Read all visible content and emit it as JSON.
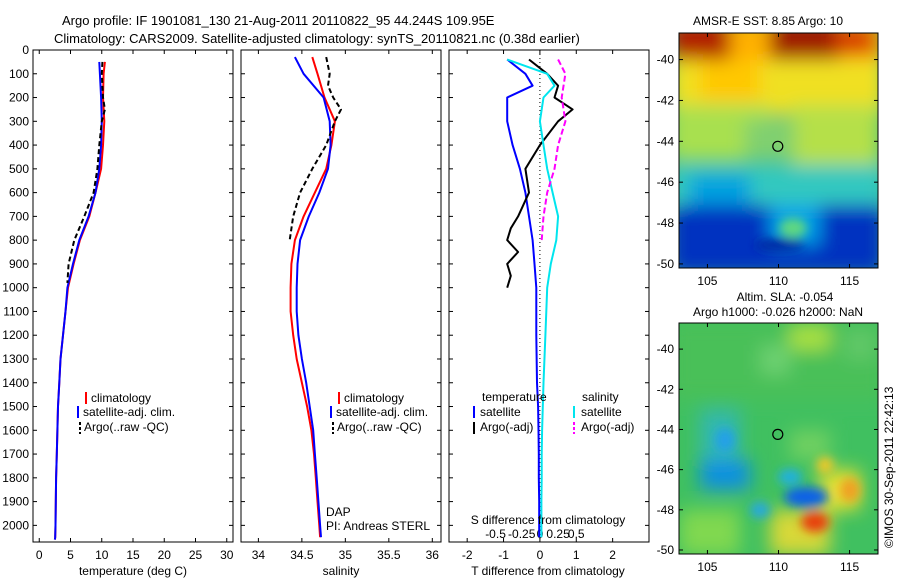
{
  "figure": {
    "title_line1": "Argo profile: IF 1901081_130 21-Aug-2011 20110822_95 44.244S 109.95E",
    "title_line2": "Climatology: CARS2009. Satellite-adjusted climatology: synTS_20110821.nc (0.38d earlier)",
    "credit": "©IMOS 30-Sep-2011 22:42:13",
    "dap_label": "DAP",
    "pi_label": "PI: Andreas STERL"
  },
  "colors": {
    "climatology": "#ff0000",
    "satellite": "#0000ff",
    "argo": "#000000",
    "satellite_salinity": "#00e5ee",
    "argo_salinity": "#ff00ff"
  },
  "chart_data": [
    {
      "type": "line",
      "id": "temperature",
      "xlabel": "temperature (deg C)",
      "ylabel": "",
      "xlim": [
        -1,
        31
      ],
      "ylim": [
        2070,
        0
      ],
      "xticks": [
        0,
        5,
        10,
        15,
        20,
        25,
        30
      ],
      "yticks": [
        0,
        100,
        200,
        300,
        400,
        500,
        600,
        700,
        800,
        900,
        1000,
        1100,
        1200,
        1300,
        1400,
        1500,
        1600,
        1700,
        1800,
        1900,
        2000
      ],
      "legend": [
        "climatology",
        "satellite-adj. clim.",
        "Argo(..raw -QC)"
      ],
      "series": [
        {
          "name": "climatology",
          "color": "#ff0000",
          "dash": "",
          "x": [
            10.5,
            10.3,
            10.2,
            10.4,
            10.2,
            9.9,
            9.0,
            8.0,
            6.5,
            5.5,
            4.6,
            4.2,
            3.8,
            3.4,
            3.2,
            3.0,
            2.9,
            2.8,
            2.7,
            2.65,
            2.6,
            2.55,
            2.5
          ],
          "y": [
            50,
            100,
            200,
            300,
            400,
            500,
            600,
            700,
            800,
            900,
            1000,
            1100,
            1200,
            1300,
            1400,
            1500,
            1600,
            1700,
            1800,
            1900,
            2000,
            2050,
            2060
          ]
        },
        {
          "name": "satellite-adj. clim.",
          "color": "#0000ff",
          "dash": "",
          "x": [
            9.6,
            9.7,
            9.9,
            10.0,
            9.9,
            9.6,
            9.0,
            7.9,
            6.4,
            5.4,
            4.5,
            4.2,
            3.8,
            3.4,
            3.2,
            3.0,
            2.9,
            2.8,
            2.7,
            2.65,
            2.6,
            2.55,
            2.5
          ],
          "y": [
            50,
            100,
            200,
            300,
            400,
            500,
            600,
            700,
            800,
            900,
            1000,
            1100,
            1200,
            1300,
            1400,
            1500,
            1600,
            1700,
            1800,
            1900,
            2000,
            2050,
            2060
          ]
        },
        {
          "name": "Argo(..raw -QC)",
          "color": "#000000",
          "dash": "5 3",
          "x": [
            10.1,
            10.0,
            10.1,
            10.2,
            10.5,
            10.0,
            9.6,
            9.3,
            8.7,
            7.2,
            5.6,
            4.7,
            4.5
          ],
          "y": [
            50,
            100,
            150,
            200,
            250,
            300,
            400,
            500,
            600,
            700,
            800,
            900,
            980
          ]
        }
      ]
    },
    {
      "type": "line",
      "id": "salinity",
      "xlabel": "salinity",
      "ylabel": "",
      "xlim": [
        33.8,
        36.1
      ],
      "ylim": [
        2070,
        0
      ],
      "xticks": [
        34,
        34.5,
        35,
        35.5,
        36
      ],
      "legend": [
        "climatology",
        "satellite-adj. clim.",
        "Argo(..raw -QC)"
      ],
      "series": [
        {
          "name": "climatology",
          "color": "#ff0000",
          "dash": "",
          "x": [
            34.62,
            34.68,
            34.76,
            34.88,
            34.84,
            34.78,
            34.65,
            34.52,
            34.42,
            34.38,
            34.37,
            34.37,
            34.4,
            34.44,
            34.5,
            34.56,
            34.61,
            34.64,
            34.66,
            34.68,
            34.7,
            34.71
          ],
          "y": [
            30,
            100,
            200,
            300,
            400,
            500,
            600,
            700,
            800,
            900,
            1000,
            1100,
            1200,
            1300,
            1400,
            1500,
            1600,
            1700,
            1800,
            1900,
            2000,
            2050
          ]
        },
        {
          "name": "satellite-adj. clim.",
          "color": "#0000ff",
          "dash": "",
          "x": [
            34.42,
            34.52,
            34.75,
            34.82,
            34.83,
            34.8,
            34.7,
            34.58,
            34.48,
            34.45,
            34.44,
            34.44,
            34.46,
            34.5,
            34.55,
            34.59,
            34.63,
            34.65,
            34.67,
            34.69,
            34.71,
            34.72
          ],
          "y": [
            30,
            100,
            200,
            300,
            400,
            500,
            600,
            700,
            800,
            900,
            1000,
            1100,
            1200,
            1300,
            1400,
            1500,
            1600,
            1700,
            1800,
            1900,
            2000,
            2050
          ]
        },
        {
          "name": "Argo(..raw -QC)",
          "color": "#000000",
          "dash": "5 3",
          "x": [
            34.78,
            34.82,
            34.8,
            34.86,
            34.95,
            34.88,
            34.78,
            34.62,
            34.48,
            34.4,
            34.36
          ],
          "y": [
            30,
            100,
            150,
            200,
            250,
            300,
            400,
            500,
            600,
            700,
            800
          ]
        }
      ]
    },
    {
      "type": "line",
      "id": "difference",
      "xlabel": "T difference from climatology",
      "top_label": "S difference from climatology",
      "xlim": [
        -2.5,
        3.0
      ],
      "ylim": [
        2070,
        0
      ],
      "xticks": [
        -2,
        -1,
        0,
        1,
        2
      ],
      "top_ticks": [
        "-0.5",
        "-0.25",
        "0",
        "0.25",
        "0.5"
      ],
      "legend_titles": [
        "temperature",
        "salinity"
      ],
      "legend": [
        "satellite",
        "Argo(-adj)",
        "satellite",
        "Argo(-adj)"
      ],
      "series": [
        {
          "name": "temperature satellite",
          "color": "#0000ff",
          "dash": "",
          "x": [
            -0.9,
            -0.4,
            -0.2,
            -0.9,
            -0.9,
            -0.75,
            -0.55,
            -0.4,
            -0.3,
            -0.2,
            -0.15,
            -0.1,
            -0.1,
            -0.08,
            -0.05,
            -0.04,
            -0.03,
            -0.03,
            -0.02,
            -0.02
          ],
          "y": [
            40,
            100,
            150,
            200,
            300,
            400,
            500,
            600,
            700,
            800,
            900,
            1000,
            1200,
            1400,
            1500,
            1600,
            1700,
            1800,
            1900,
            2050
          ]
        },
        {
          "name": "temperature Argo(-adj)",
          "color": "#000000",
          "dash": "",
          "x": [
            -0.3,
            0.2,
            0.5,
            0.4,
            0.9,
            0.5,
            0.0,
            -0.4,
            -0.3,
            -0.6,
            -0.8,
            -0.9,
            -0.6,
            -0.9,
            -0.8,
            -0.9
          ],
          "y": [
            40,
            100,
            150,
            200,
            250,
            300,
            400,
            500,
            600,
            700,
            750,
            800,
            850,
            900,
            950,
            1000
          ]
        },
        {
          "name": "salinity satellite",
          "color": "#00e5ee",
          "dash": "",
          "x": [
            -0.9,
            0.2,
            0.4,
            0.1,
            0.0,
            0.1,
            0.2,
            0.35,
            0.5,
            0.45,
            0.3,
            0.2,
            0.15,
            0.1,
            0.08,
            0.06,
            0.05,
            0.05,
            0.04,
            0.04
          ],
          "y": [
            40,
            100,
            150,
            200,
            300,
            400,
            500,
            600,
            700,
            800,
            900,
            1000,
            1200,
            1400,
            1500,
            1600,
            1700,
            1800,
            1900,
            2050
          ]
        },
        {
          "name": "salinity Argo(-adj)",
          "color": "#ff00ff",
          "dash": "6 3",
          "x": [
            0.5,
            0.7,
            0.6,
            0.7,
            0.5,
            0.4,
            0.2,
            0.1,
            0.05
          ],
          "y": [
            40,
            100,
            200,
            300,
            400,
            500,
            600,
            700,
            800
          ]
        }
      ]
    },
    {
      "type": "heatmap",
      "id": "sst_map",
      "title": "AMSR-E SST: 8.85 Argo: 10",
      "xlim": [
        103,
        117
      ],
      "ylim": [
        -50.2,
        -38.7
      ],
      "xticks": [
        105,
        110,
        115
      ],
      "yticks": [
        -40,
        -42,
        -44,
        -46,
        -48,
        -50
      ],
      "marker": {
        "lon": 109.95,
        "lat": -44.244
      }
    },
    {
      "type": "heatmap",
      "id": "sla_map",
      "title_line1": "Altim. SLA: -0.054",
      "title_line2": "Argo h1000: -0.026 h2000: NaN",
      "xlim": [
        103,
        117
      ],
      "ylim": [
        -50.2,
        -38.7
      ],
      "xticks": [
        105,
        110,
        115
      ],
      "yticks": [
        -40,
        -42,
        -44,
        -46,
        -48,
        -50
      ],
      "marker": {
        "lon": 109.95,
        "lat": -44.244
      }
    }
  ]
}
